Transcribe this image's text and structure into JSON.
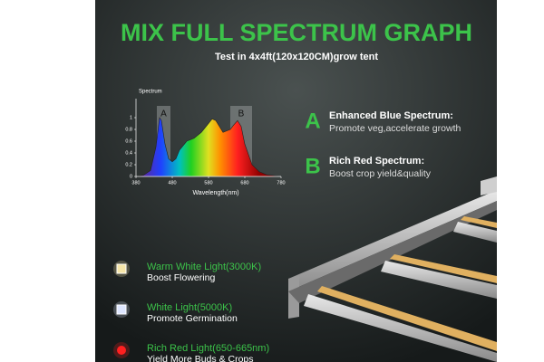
{
  "header": {
    "title": "MIX FULL SPECTRUM GRAPH",
    "subtitle": "Test in 4x4ft(120x120CM)grow tent"
  },
  "chart_data": {
    "type": "area",
    "y_label": "Spectrum",
    "x_label": "Wavelength(nm)",
    "x": [
      380,
      400,
      420,
      435,
      445,
      450,
      460,
      470,
      480,
      490,
      500,
      520,
      540,
      560,
      580,
      590,
      600,
      620,
      640,
      650,
      660,
      670,
      680,
      700,
      720,
      740,
      780
    ],
    "values": [
      0,
      0.02,
      0.1,
      0.5,
      1.0,
      0.95,
      0.55,
      0.3,
      0.25,
      0.3,
      0.45,
      0.6,
      0.65,
      0.75,
      0.9,
      0.98,
      0.95,
      0.75,
      0.8,
      0.88,
      0.95,
      0.85,
      0.55,
      0.2,
      0.08,
      0.03,
      0
    ],
    "xlim": [
      380,
      780
    ],
    "xticks": [
      380,
      480,
      580,
      680,
      780
    ],
    "ylim": [
      0,
      1.2
    ],
    "yticks": [
      0,
      {
        "value": 0.2,
        "label": "0.2"
      },
      {
        "value": 0.4,
        "label": "0.4"
      },
      {
        "value": 0.6,
        "label": "0.6"
      },
      {
        "value": 0.8,
        "label": "0.8"
      },
      1
    ],
    "bands": [
      "A",
      "B"
    ]
  },
  "features": [
    {
      "letter": "A",
      "title": "Enhanced Blue Spectrum:",
      "text": "Promote veg,accelerate growth"
    },
    {
      "letter": "B",
      "title": "Rich Red Spectrum:",
      "text": "Boost crop yield&quality"
    }
  ],
  "lights": [
    {
      "title": "Warm White Light(3000K)",
      "text": "Boost Flowering"
    },
    {
      "title": "White Light(5000K)",
      "text": "Promote Germination"
    },
    {
      "title": "Rich Red Light(650-665nm)",
      "text": "Yield More Buds & Crops"
    }
  ]
}
